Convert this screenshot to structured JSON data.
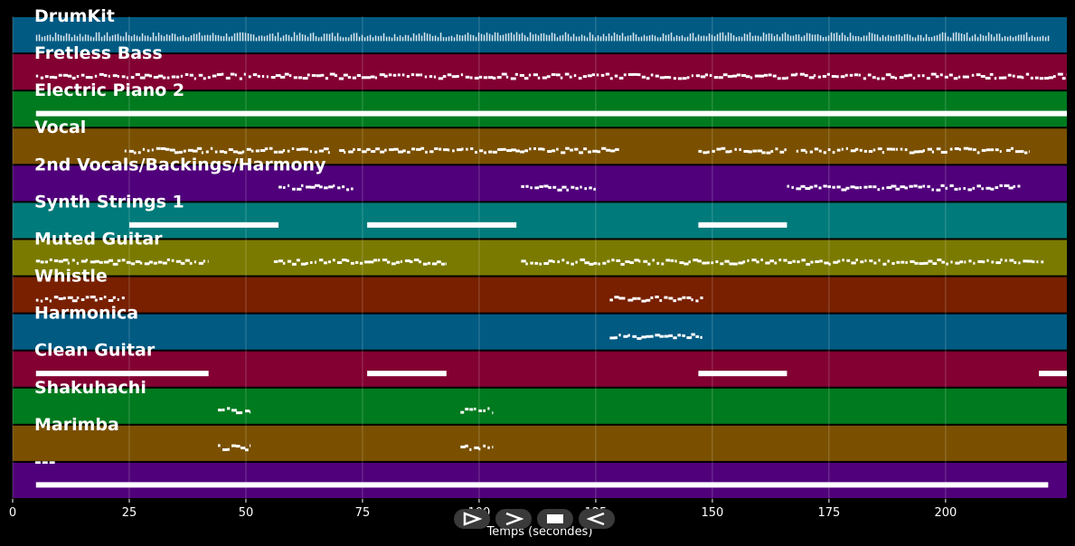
{
  "chart_data": {
    "type": "piano-roll",
    "xlabel": "Temps (secondes)",
    "xlim": [
      0,
      226
    ],
    "x_ticks": [
      0,
      25,
      50,
      75,
      100,
      125,
      150,
      175,
      200
    ],
    "tracks": [
      {
        "name": "DrumKit",
        "color": "#005a82",
        "segments": [
          [
            5,
            222
          ]
        ],
        "style": "dense-ticks"
      },
      {
        "name": "Fretless Bass",
        "color": "#820032",
        "segments": [
          [
            5,
            226
          ]
        ],
        "style": "dotted-line"
      },
      {
        "name": "Electric Piano 2",
        "color": "#007a1e",
        "segments": [
          [
            5,
            226
          ]
        ],
        "style": "thick-line"
      },
      {
        "name": "Vocal",
        "color": "#7a5000",
        "segments": [
          [
            24,
            68
          ],
          [
            70,
            130
          ],
          [
            147,
            166
          ],
          [
            168,
            212
          ],
          [
            213,
            218
          ]
        ],
        "style": "dotted-line"
      },
      {
        "name": "2nd Vocals/Backings/Harmony",
        "color": "#50007a",
        "segments": [
          [
            57,
            73
          ],
          [
            109,
            125
          ],
          [
            166,
            216
          ]
        ],
        "style": "dotted-line"
      },
      {
        "name": "Synth Strings 1",
        "color": "#007a7a",
        "segments": [
          [
            25,
            57
          ],
          [
            76,
            108
          ],
          [
            147,
            166
          ]
        ],
        "style": "thick-line"
      },
      {
        "name": "Muted Guitar",
        "color": "#7a7a00",
        "segments": [
          [
            5,
            42
          ],
          [
            56,
            93
          ],
          [
            109,
            221
          ]
        ],
        "style": "dotted-line"
      },
      {
        "name": "Whistle",
        "color": "#782000",
        "segments": [
          [
            5,
            24
          ],
          [
            128,
            148
          ]
        ],
        "style": "dotted-line"
      },
      {
        "name": "Harmonica",
        "color": "#005a82",
        "segments": [
          [
            128,
            148
          ]
        ],
        "style": "dotted-line"
      },
      {
        "name": "Clean Guitar",
        "color": "#820032",
        "segments": [
          [
            5,
            42
          ],
          [
            76,
            93
          ],
          [
            147,
            166
          ],
          [
            220,
            226
          ]
        ],
        "style": "thick-line"
      },
      {
        "name": "Shakuhachi",
        "color": "#007a1e",
        "segments": [
          [
            44,
            51
          ],
          [
            96,
            103
          ]
        ],
        "style": "dotted-line"
      },
      {
        "name": "Marimba",
        "color": "#7a5000",
        "segments": [
          [
            44,
            51
          ],
          [
            96,
            103
          ]
        ],
        "style": "dotted-line"
      },
      {
        "name": "---",
        "color": "#50007a",
        "segments": [
          [
            5,
            222
          ]
        ],
        "style": "thick-line"
      }
    ]
  },
  "controls": [
    {
      "name": "play-icon"
    },
    {
      "name": "forward-icon"
    },
    {
      "name": "stop-icon"
    },
    {
      "name": "back-icon"
    }
  ]
}
